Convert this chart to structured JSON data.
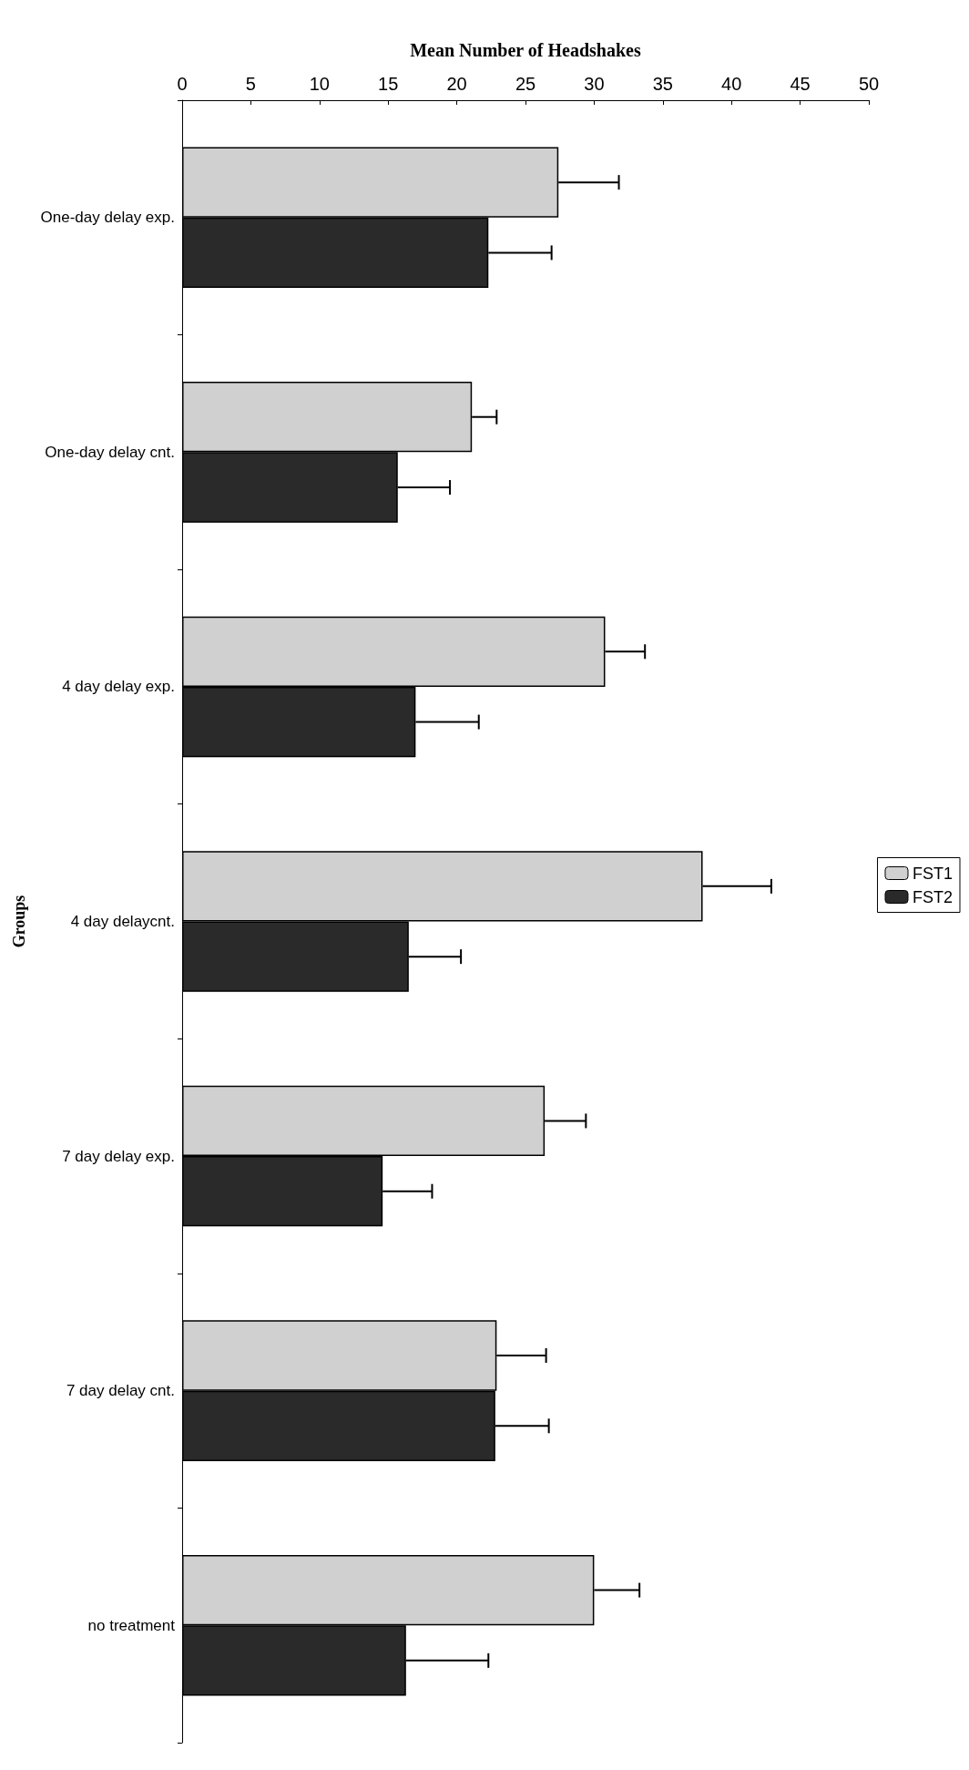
{
  "chart_data": {
    "type": "bar",
    "orientation": "horizontal",
    "xlabel": "Mean Number of Headshakes",
    "ylabel": "Groups",
    "categories": [
      "One-day delay exp.",
      "One-day delay cnt.",
      "4 day delay exp.",
      "4 day delaycnt.",
      "7 day delay exp.",
      "7 day delay cnt.",
      "no treatment"
    ],
    "series": [
      {
        "name": "FST1",
        "color": "#d0d0d0",
        "values": [
          27.4,
          21.1,
          30.8,
          37.9,
          26.4,
          22.9,
          30.0
        ],
        "errors": [
          4.4,
          1.8,
          2.9,
          5.0,
          3.0,
          3.6,
          3.3
        ]
      },
      {
        "name": "FST2",
        "color": "#2a2a2a",
        "values": [
          22.3,
          15.7,
          17.0,
          16.5,
          14.6,
          22.8,
          16.3
        ],
        "errors": [
          4.6,
          3.8,
          4.6,
          3.8,
          3.6,
          3.9,
          6.0
        ]
      }
    ],
    "xlim": [
      0,
      50
    ],
    "xticks": [
      0,
      5,
      10,
      15,
      20,
      25,
      30,
      35,
      40,
      45,
      50
    ],
    "grid": false,
    "legend": "right"
  }
}
